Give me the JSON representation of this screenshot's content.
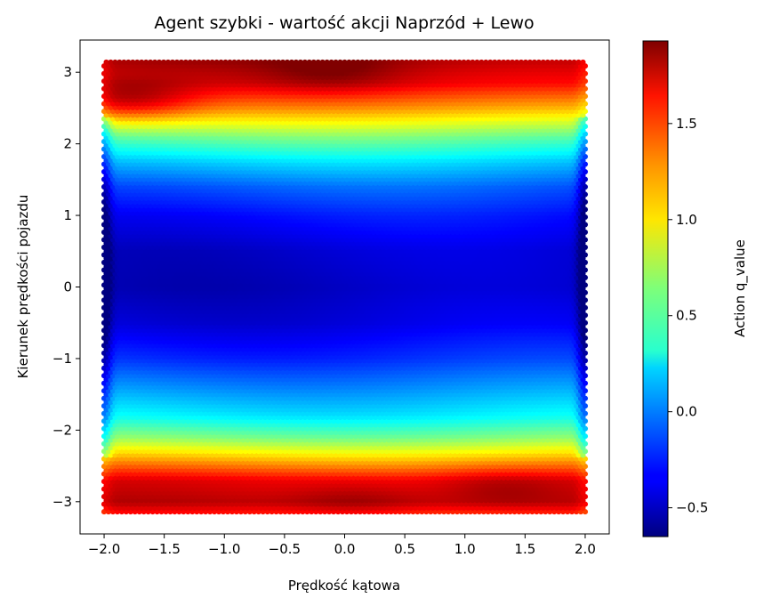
{
  "chart_data": {
    "type": "heatmap",
    "title": "Agent szybki - wartość akcji Naprzód + Lewo",
    "xlabel": "Prędkość kątowa",
    "ylabel": "Kierunek prędkości pojazdu",
    "colorbar_label": "Action q_value",
    "colormap": "jet",
    "xlim": [
      -2.2,
      2.2
    ],
    "ylim": [
      -3.45,
      3.45
    ],
    "data_x_range": [
      -2.0,
      2.0
    ],
    "data_y_range": [
      -3.14,
      3.14
    ],
    "value_range": [
      -0.65,
      1.93
    ],
    "x_ticks": [
      -2.0,
      -1.5,
      -1.0,
      -0.5,
      0.0,
      0.5,
      1.0,
      1.5,
      2.0
    ],
    "x_tick_labels": [
      "−2.0",
      "−1.5",
      "−1.0",
      "−0.5",
      "0.0",
      "0.5",
      "1.0",
      "1.5",
      "2.0"
    ],
    "y_ticks": [
      -3,
      -2,
      -1,
      0,
      1,
      2,
      3
    ],
    "y_tick_labels": [
      "−3",
      "−2",
      "−1",
      "0",
      "1",
      "2",
      "3"
    ],
    "colorbar_ticks": [
      -0.5,
      0.0,
      0.5,
      1.0,
      1.5
    ],
    "colorbar_tick_labels": [
      "−0.5",
      "0.0",
      "0.5",
      "1.0",
      "1.5"
    ],
    "value_profile_by_y": [
      {
        "y": -3.14,
        "value": 1.55
      },
      {
        "y": -3.0,
        "value": 1.75
      },
      {
        "y": -2.7,
        "value": 1.65
      },
      {
        "y": -2.4,
        "value": 1.15
      },
      {
        "y": -2.1,
        "value": 0.65
      },
      {
        "y": -1.8,
        "value": 0.3
      },
      {
        "y": -1.4,
        "value": 0.05
      },
      {
        "y": -1.0,
        "value": -0.2
      },
      {
        "y": -0.5,
        "value": -0.4
      },
      {
        "y": 0.0,
        "value": -0.48
      },
      {
        "y": 0.5,
        "value": -0.45
      },
      {
        "y": 1.0,
        "value": -0.3
      },
      {
        "y": 1.4,
        "value": -0.1
      },
      {
        "y": 1.75,
        "value": 0.2
      },
      {
        "y": 2.1,
        "value": 0.6
      },
      {
        "y": 2.5,
        "value": 1.2
      },
      {
        "y": 2.85,
        "value": 1.65
      },
      {
        "y": 3.14,
        "value": 1.8
      }
    ],
    "hotspots": [
      {
        "x": -0.1,
        "y": 3.0,
        "value": 1.9
      },
      {
        "x": 0.1,
        "y": -3.0,
        "value": 1.9
      },
      {
        "x": -1.8,
        "y": 2.6,
        "value": 1.75
      },
      {
        "x": 1.3,
        "y": -2.8,
        "value": 1.85
      }
    ],
    "edge_effects": [
      {
        "x": -2.0,
        "value_delta": -0.35
      },
      {
        "x": 2.0,
        "value_delta": -0.4
      }
    ]
  }
}
